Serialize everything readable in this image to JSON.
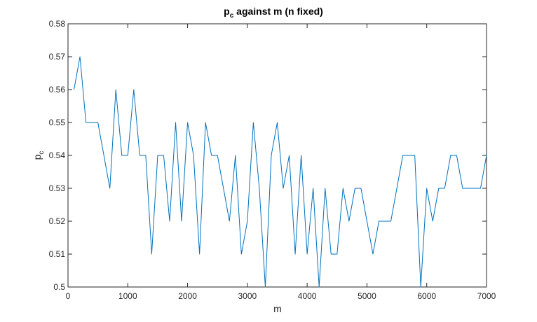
{
  "chart_data": {
    "type": "line",
    "title": {
      "main": "p",
      "sub": "c",
      "rest": " against m (n fixed)"
    },
    "xlabel": "m",
    "ylabel": {
      "main": "p",
      "sub": "c"
    },
    "xlim": [
      0,
      7000
    ],
    "ylim": [
      0.5,
      0.58
    ],
    "xticks": [
      0,
      1000,
      2000,
      3000,
      4000,
      5000,
      6000,
      7000
    ],
    "yticks": [
      0.5,
      0.51,
      0.52,
      0.53,
      0.54,
      0.55,
      0.56,
      0.57,
      0.58
    ],
    "xtick_labels": [
      "0",
      "1000",
      "2000",
      "3000",
      "4000",
      "5000",
      "6000",
      "7000"
    ],
    "ytick_labels": [
      "0.5",
      "0.51",
      "0.52",
      "0.53",
      "0.54",
      "0.55",
      "0.56",
      "0.57",
      "0.58"
    ],
    "grid": false,
    "line_color": "#0072BD",
    "series": [
      {
        "x": [
          100,
          200,
          300,
          400,
          500,
          600,
          700,
          800,
          900,
          1000,
          1100,
          1200,
          1300,
          1400,
          1500,
          1600,
          1700,
          1800,
          1900,
          2000,
          2100,
          2200,
          2300,
          2400,
          2500,
          2600,
          2700,
          2800,
          2900,
          3000,
          3100,
          3200,
          3300,
          3400,
          3500,
          3600,
          3700,
          3800,
          3900,
          4000,
          4100,
          4200,
          4300,
          4400,
          4500,
          4600,
          4700,
          4800,
          4900,
          5000,
          5100,
          5200,
          5300,
          5400,
          5500,
          5600,
          5700,
          5800,
          5900,
          6000,
          6100,
          6200,
          6300,
          6400,
          6500,
          6600,
          6700,
          6800,
          6900,
          7000
        ],
        "y": [
          0.56,
          0.57,
          0.55,
          0.55,
          0.55,
          0.54,
          0.53,
          0.56,
          0.54,
          0.54,
          0.56,
          0.54,
          0.54,
          0.51,
          0.54,
          0.54,
          0.52,
          0.55,
          0.52,
          0.55,
          0.54,
          0.51,
          0.55,
          0.54,
          0.54,
          0.53,
          0.52,
          0.54,
          0.51,
          0.52,
          0.55,
          0.53,
          0.5,
          0.54,
          0.55,
          0.53,
          0.54,
          0.51,
          0.54,
          0.51,
          0.53,
          0.5,
          0.53,
          0.51,
          0.51,
          0.53,
          0.52,
          0.53,
          0.53,
          0.52,
          0.51,
          0.52,
          0.52,
          0.52,
          0.53,
          0.54,
          0.54,
          0.54,
          0.5,
          0.53,
          0.52,
          0.53,
          0.53,
          0.54,
          0.54,
          0.53,
          0.53,
          0.53,
          0.53,
          0.54
        ]
      }
    ]
  }
}
